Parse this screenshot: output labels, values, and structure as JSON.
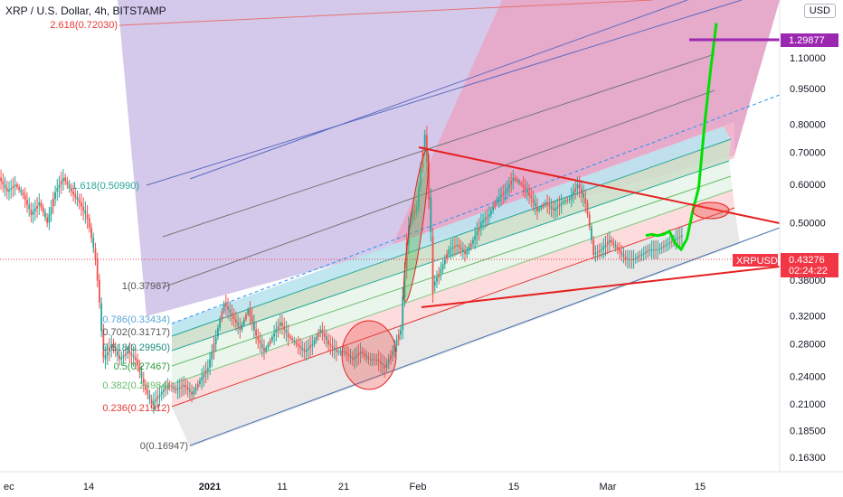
{
  "title": "XRP / U.S. Dollar, 4h, BITSTAMP",
  "currency": "USD",
  "colors": {
    "up": "#26a69a",
    "down": "#ef5350",
    "bright_green": "#00e000",
    "red_line": "#e62020",
    "purple": "#9c27b0",
    "price_tag": "#f23645"
  },
  "chart_data": {
    "type": "candlestick",
    "title": "XRP / U.S. Dollar, 4h, BITSTAMP",
    "y_scale": "log",
    "ylim": [
      0.152,
      1.45
    ],
    "y_ticks": [
      "1.10000",
      "0.95000",
      "0.80000",
      "0.70000",
      "0.60000",
      "0.50000",
      "0.38000",
      "0.32000",
      "0.28000",
      "0.24000",
      "0.21000",
      "0.18500",
      "0.16300"
    ],
    "x_ticks": [
      "ec",
      "14",
      "2021",
      "11",
      "21",
      "Feb",
      "15",
      "Mar",
      "15"
    ],
    "current_price": {
      "symbol": "XRPUSD",
      "value": "0.43276",
      "countdown": "02:24:22"
    },
    "high_marker": "1.29877",
    "fib_levels": [
      {
        "label": "2.618(0.72030)",
        "ratio": 2.618,
        "price": 0.7203
      },
      {
        "label": "1.618(0.50990)",
        "ratio": 1.618,
        "price": 0.5099
      },
      {
        "label": "1(0.37987)",
        "ratio": 1,
        "price": 0.37987
      },
      {
        "label": "0.786(0.33434)",
        "ratio": 0.786,
        "price": 0.33434
      },
      {
        "label": "0.702(0.31717)",
        "ratio": 0.702,
        "price": 0.31717
      },
      {
        "label": "0.618(0.29950)",
        "ratio": 0.618,
        "price": 0.2995
      },
      {
        "label": "0.5(0.27467)",
        "ratio": 0.5,
        "price": 0.27467
      },
      {
        "label": "0.382(0.24984)",
        "ratio": 0.382,
        "price": 0.24984
      },
      {
        "label": "0.236(0.21912)",
        "ratio": 0.236,
        "price": 0.21912
      },
      {
        "label": "0(0.16947)",
        "ratio": 0,
        "price": 0.16947
      }
    ],
    "series": [
      {
        "name": "price_before",
        "color": "mixed",
        "points": [
          [
            "Dec 10",
            0.62
          ],
          [
            "Dec 11",
            0.58
          ],
          [
            "Dec 12",
            0.6
          ],
          [
            "Dec 13",
            0.57
          ],
          [
            "Dec 14",
            0.52
          ],
          [
            "Dec 15",
            0.55
          ],
          [
            "Dec 16",
            0.5
          ],
          [
            "Dec 17",
            0.58
          ],
          [
            "Dec 18",
            0.62
          ],
          [
            "Dec 19",
            0.58
          ],
          [
            "Dec 20",
            0.55
          ],
          [
            "Dec 21",
            0.51
          ],
          [
            "Dec 22",
            0.42
          ],
          [
            "Dec 23",
            0.26
          ],
          [
            "Dec 24",
            0.28
          ],
          [
            "Dec 25",
            0.26
          ],
          [
            "Dec 26",
            0.27
          ],
          [
            "Dec 27",
            0.26
          ],
          [
            "Dec 28",
            0.23
          ],
          [
            "Dec 29",
            0.21
          ],
          [
            "Dec 30",
            0.22
          ],
          [
            "Dec 31",
            0.23
          ],
          [
            "Jan 1",
            0.225
          ],
          [
            "Jan 2",
            0.23
          ],
          [
            "Jan 3",
            0.22
          ],
          [
            "Jan 4",
            0.235
          ],
          [
            "Jan 5",
            0.25
          ],
          [
            "Jan 6",
            0.29
          ],
          [
            "Jan 7",
            0.34
          ],
          [
            "Jan 8",
            0.32
          ],
          [
            "Jan 9",
            0.3
          ],
          [
            "Jan 10",
            0.33
          ],
          [
            "Jan 11",
            0.29
          ],
          [
            "Jan 12",
            0.27
          ],
          [
            "Jan 13",
            0.29
          ],
          [
            "Jan 14",
            0.31
          ],
          [
            "Jan 15",
            0.29
          ],
          [
            "Jan 16",
            0.28
          ],
          [
            "Jan 17",
            0.27
          ],
          [
            "Jan 18",
            0.28
          ],
          [
            "Jan 19",
            0.3
          ],
          [
            "Jan 20",
            0.28
          ],
          [
            "Jan 21",
            0.27
          ],
          [
            "Jan 22",
            0.27
          ],
          [
            "Jan 23",
            0.26
          ],
          [
            "Jan 24",
            0.27
          ],
          [
            "Jan 25",
            0.26
          ],
          [
            "Jan 26",
            0.26
          ],
          [
            "Jan 27",
            0.25
          ],
          [
            "Jan 28",
            0.27
          ],
          [
            "Jan 29",
            0.3
          ],
          [
            "Jan 30",
            0.5
          ],
          [
            "Jan 31",
            0.54
          ],
          [
            "Feb 1",
            0.76
          ],
          [
            "Feb 2",
            0.37
          ],
          [
            "Feb 3",
            0.4
          ],
          [
            "Feb 4",
            0.44
          ],
          [
            "Feb 5",
            0.45
          ],
          [
            "Feb 6",
            0.43
          ],
          [
            "Feb 7",
            0.46
          ],
          [
            "Feb 8",
            0.5
          ],
          [
            "Feb 9",
            0.52
          ],
          [
            "Feb 10",
            0.56
          ],
          [
            "Feb 11",
            0.58
          ],
          [
            "Feb 12",
            0.62
          ],
          [
            "Feb 13",
            0.6
          ],
          [
            "Feb 14",
            0.57
          ],
          [
            "Feb 15",
            0.53
          ],
          [
            "Feb 16",
            0.55
          ],
          [
            "Feb 17",
            0.53
          ],
          [
            "Feb 18",
            0.55
          ],
          [
            "Feb 19",
            0.56
          ],
          [
            "Feb 20",
            0.6
          ],
          [
            "Feb 21",
            0.55
          ],
          [
            "Feb 22",
            0.43
          ],
          [
            "Feb 23",
            0.44
          ],
          [
            "Feb 24",
            0.46
          ],
          [
            "Feb 25",
            0.44
          ],
          [
            "Feb 26",
            0.42
          ],
          [
            "Feb 27",
            0.42
          ],
          [
            "Feb 28",
            0.43
          ],
          [
            "Mar 1",
            0.44
          ],
          [
            "Mar 2",
            0.44
          ],
          [
            "Mar 3",
            0.45
          ],
          [
            "Mar 4",
            0.46
          ],
          [
            "Mar 5",
            0.47
          ]
        ]
      },
      {
        "name": "price_projection",
        "color": "#00e000",
        "points": [
          [
            "Mar 5",
            0.47
          ],
          [
            "Mar 6",
            0.48
          ],
          [
            "Mar 7",
            0.47
          ],
          [
            "Mar 8",
            0.48
          ],
          [
            "Mar 9",
            0.48
          ],
          [
            "Mar 10",
            0.46
          ],
          [
            "Mar 11",
            0.44
          ],
          [
            "Mar 12",
            0.47
          ],
          [
            "Mar 13",
            0.53
          ],
          [
            "Mar 14",
            0.6
          ],
          [
            "Mar 15",
            0.8
          ],
          [
            "Mar 16",
            1.05
          ],
          [
            "Mar 17",
            1.29877
          ]
        ]
      }
    ]
  }
}
